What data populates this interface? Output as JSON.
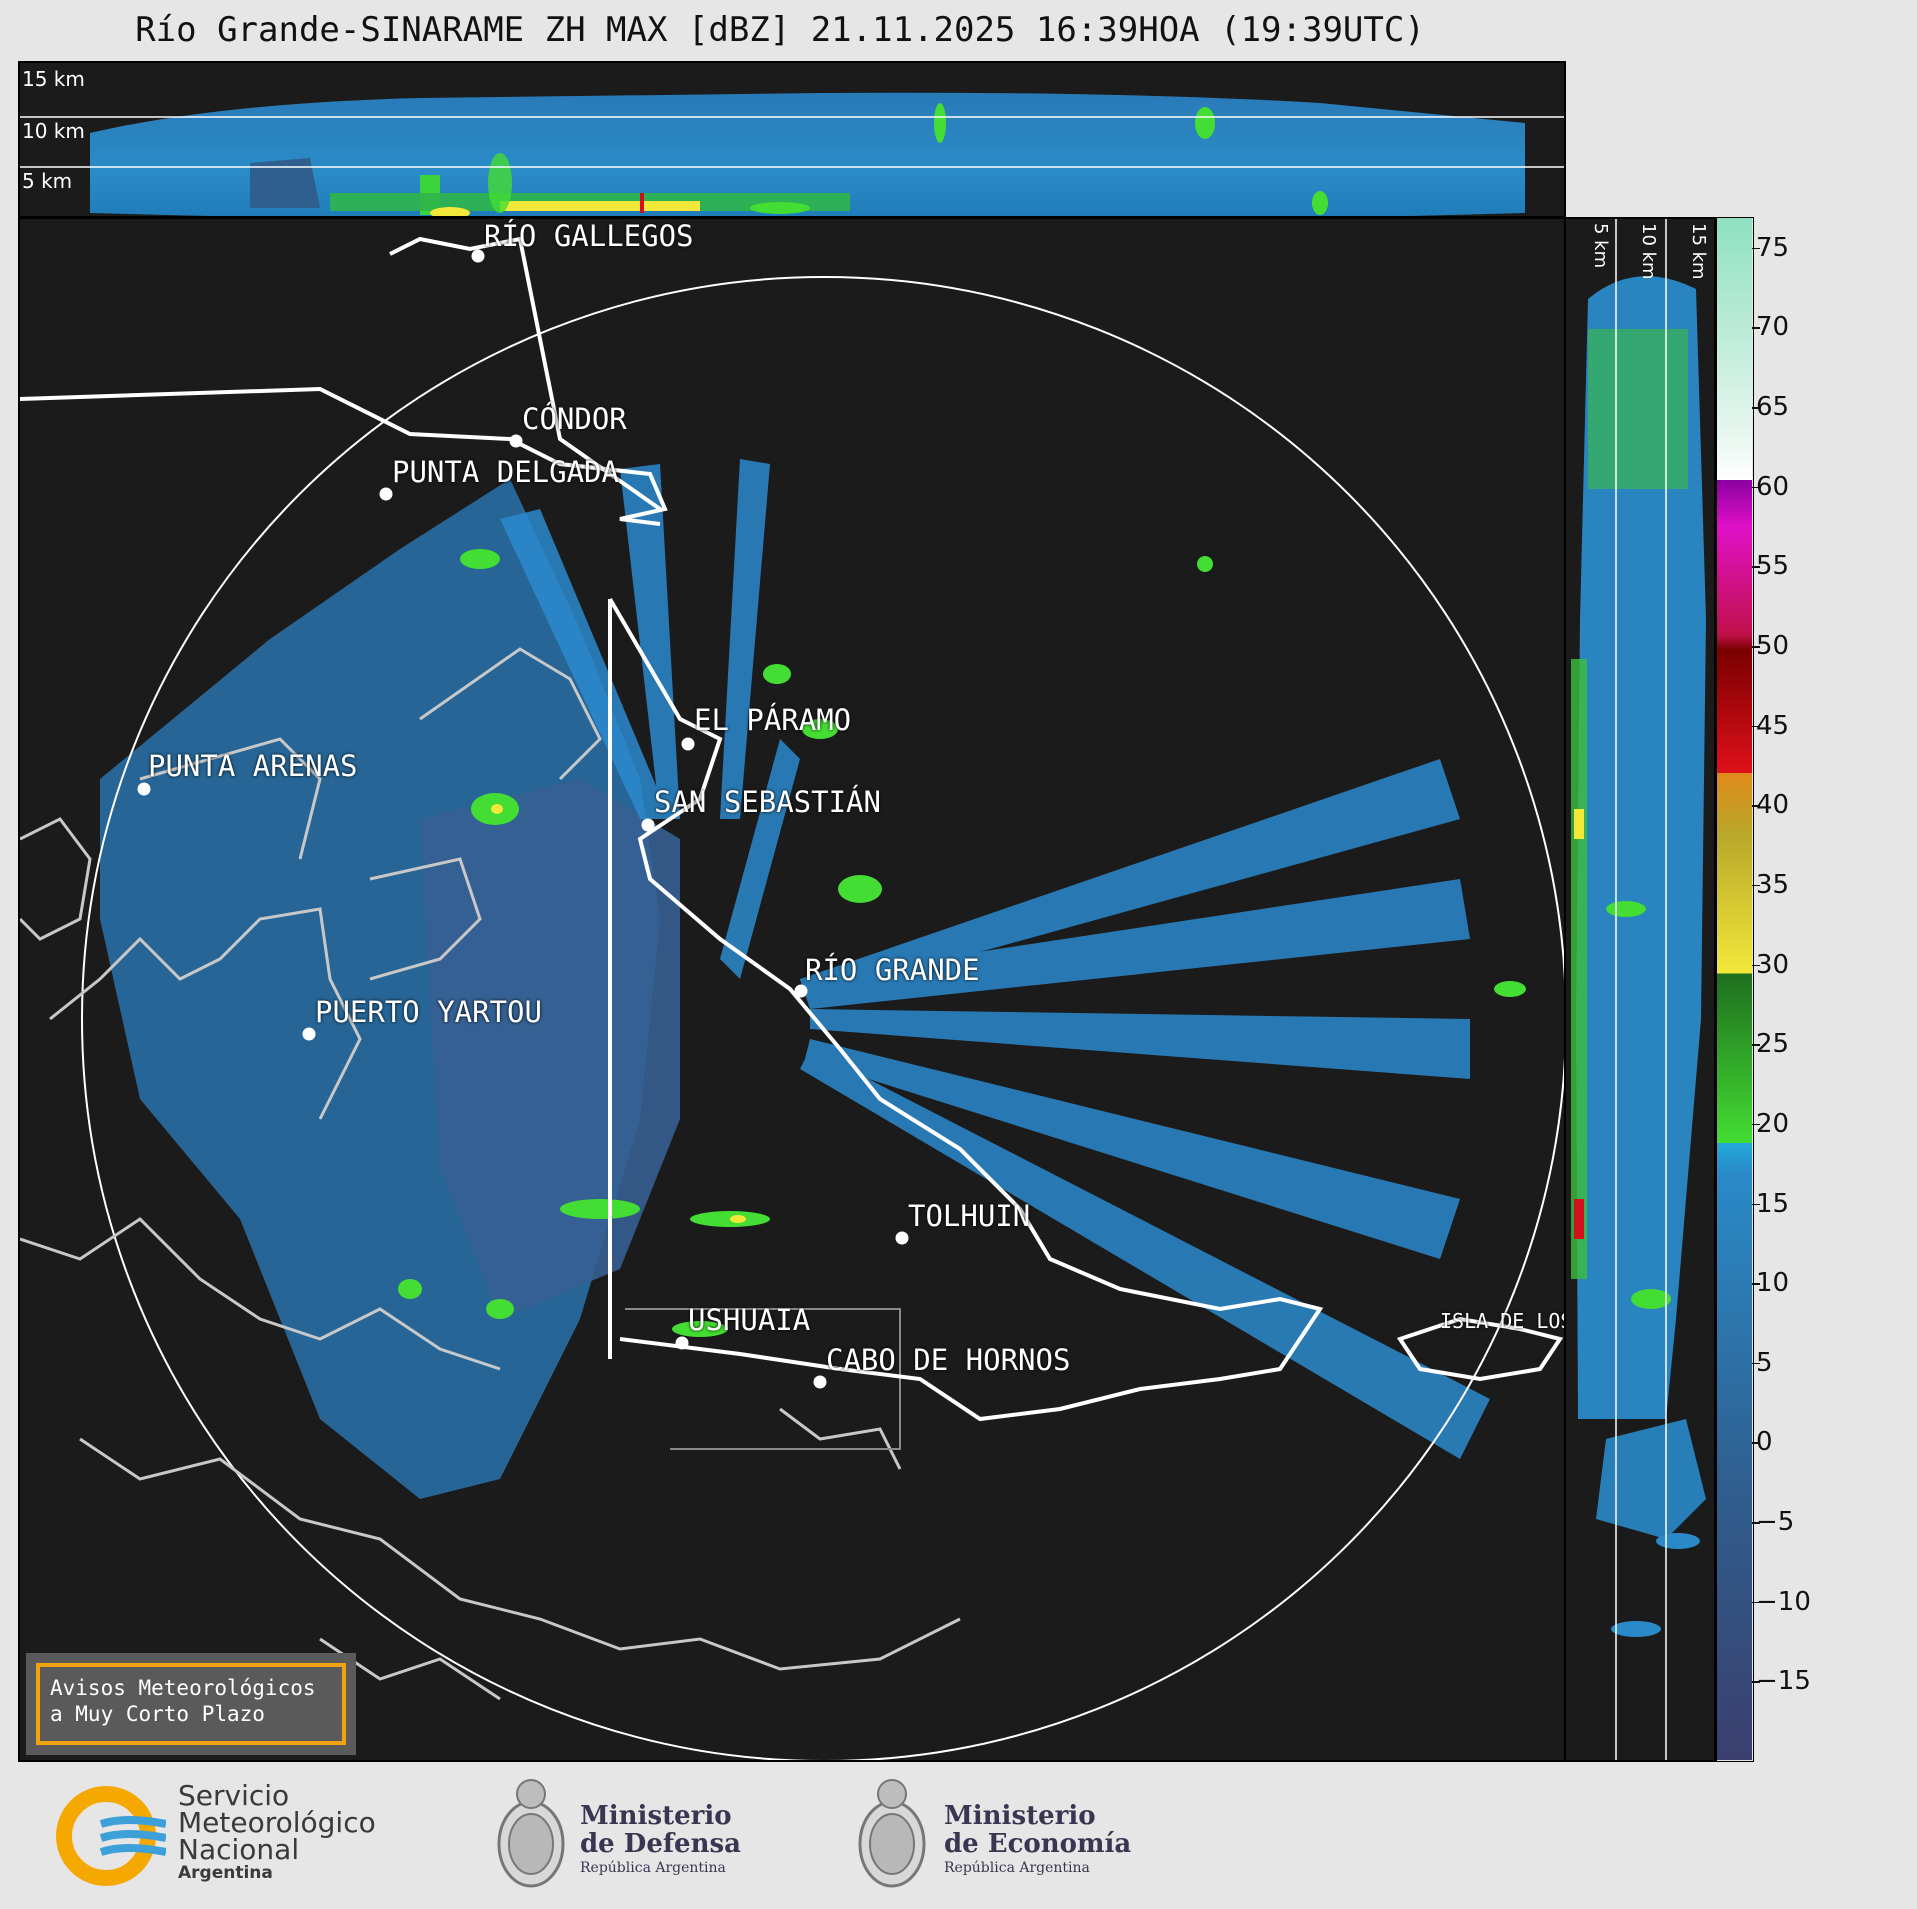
{
  "title": "Río Grande-SINARAME ZH MAX [dBZ] 21.11.2025 16:39HOA (19:39UTC)",
  "top_panel": {
    "altitude_labels": [
      "15 km",
      "10 km",
      "5 km"
    ]
  },
  "right_panel": {
    "altitude_labels": [
      "5 km",
      "10 km",
      "15 km"
    ]
  },
  "colorbar": {
    "unit": "dBZ",
    "ticks": [
      "75",
      "70",
      "65",
      "60",
      "55",
      "50",
      "45",
      "40",
      "35",
      "30",
      "25",
      "20",
      "15",
      "10",
      "5",
      "0",
      "−5",
      "−10",
      "−15"
    ],
    "range": [
      -20,
      77
    ],
    "colors": {
      "low": "#3a3f6e",
      "mid_low": "#2f5f8f",
      "blue": "#2a8ac8",
      "cyan": "#22a8d8",
      "green_light": "#44dd33",
      "green_dark": "#1e6e1e",
      "yellow": "#f2e83a",
      "olive": "#b8a82a",
      "orange": "#e08a1a",
      "red": "#d0101a",
      "dark_red": "#7a0000",
      "magenta": "#e010c8",
      "purple": "#8a00a0",
      "white": "#ffffff",
      "mint": "#8ee0c0"
    }
  },
  "cities": [
    {
      "name": "RÍO GALLEGOS"
    },
    {
      "name": "CÓNDOR"
    },
    {
      "name": "PUNTA DELGADA"
    },
    {
      "name": "EL PÁRAMO"
    },
    {
      "name": "PUNTA ARENAS"
    },
    {
      "name": "SAN SEBASTIÁN"
    },
    {
      "name": "RÍO GRANDE"
    },
    {
      "name": "PUERTO YARTOU"
    },
    {
      "name": "TOLHUIN"
    },
    {
      "name": "USHUAIA"
    },
    {
      "name": "CABO DE HORNOS"
    },
    {
      "name": "ISLA DE LOS ESTADOS"
    }
  ],
  "warning_box": {
    "line1": "Avisos Meteorológicos",
    "line2": "a Muy Corto Plazo",
    "border_color": "#f2a20f"
  },
  "footer": {
    "smn": {
      "line1": "Servicio",
      "line2": "Meteorológico",
      "line3": "Nacional",
      "line4": "Argentina"
    },
    "defensa": {
      "line1": "Ministerio",
      "line2": "de Defensa",
      "line3": "República Argentina"
    },
    "economia": {
      "line1": "Ministerio",
      "line2": "de Economía",
      "line3": "República Argentina"
    }
  }
}
